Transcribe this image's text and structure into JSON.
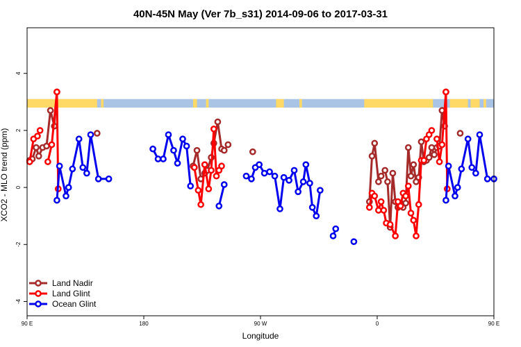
{
  "chart_data": {
    "type": "line",
    "title": "40N-45N May (Ver 7b_s31)   2014-09-06 to 2017-03-31",
    "xlabel": "Longitude",
    "ylabel": "XCO2 - MLO trend (ppm)",
    "xlim": [
      90,
      450
    ],
    "ylim": [
      -4.5,
      5.6
    ],
    "x_ticks": [
      90,
      180,
      270,
      360,
      450
    ],
    "x_tick_labels": [
      "90 E",
      "180",
      "90 W",
      "0",
      "90 E"
    ],
    "y_ticks": [
      -4,
      -2,
      0,
      2,
      4
    ],
    "y_tick_labels": [
      "-4",
      "-2",
      "0",
      "2",
      "4"
    ],
    "grid": false,
    "legend_position": "bottom-left",
    "surface_band": {
      "y_range": [
        2.8,
        3.1
      ],
      "land_color": "#ffd966",
      "ocean_color": "#a9c4e4",
      "land_segments": [
        [
          90,
          144
        ],
        [
          147,
          149
        ],
        [
          218,
          221
        ],
        [
          228,
          230
        ],
        [
          282,
          288
        ],
        [
          300,
          302
        ],
        [
          350,
          403
        ],
        [
          416,
          430
        ],
        [
          432,
          439
        ],
        [
          442,
          444
        ]
      ]
    },
    "series": [
      {
        "name": "Land Nadir",
        "color": "#a52a2a",
        "segments": [
          [
            [
              92,
              0.95
            ],
            [
              94,
              1.0
            ],
            [
              97,
              1.4
            ],
            [
              99,
              1.1
            ],
            [
              102,
              1.4
            ],
            [
              105,
              1.45
            ],
            [
              108,
              2.7
            ],
            [
              111,
              2.15
            ],
            [
              113,
              3.35
            ]
          ],
          [
            [
              144,
              1.9
            ]
          ],
          [
            [
              218,
              0.75
            ],
            [
              221,
              1.3
            ],
            [
              224,
              0.3
            ],
            [
              227,
              0.5
            ],
            [
              229,
              0.6
            ],
            [
              232,
              1.05
            ],
            [
              234,
              1.55
            ],
            [
              237,
              2.3
            ],
            [
              240,
              1.35
            ],
            [
              242,
              1.3
            ],
            [
              245,
              1.5
            ]
          ],
          [
            [
              264,
              1.25
            ]
          ],
          [
            [
              354,
              -0.5
            ],
            [
              356,
              1.1
            ],
            [
              358,
              1.55
            ],
            [
              361,
              0.2
            ],
            [
              363,
              0.4
            ],
            [
              366,
              0.6
            ],
            [
              368,
              0.2
            ],
            [
              370,
              -1.4
            ],
            [
              372,
              0.5
            ],
            [
              374,
              -0.5
            ],
            [
              376,
              -0.7
            ],
            [
              378,
              -0.55
            ],
            [
              380,
              -0.7
            ],
            [
              382,
              -0.55
            ],
            [
              384,
              1.4
            ],
            [
              386,
              0.4
            ],
            [
              388,
              0.8
            ],
            [
              390,
              0.2
            ],
            [
              392,
              0.35
            ],
            [
              394,
              1.6
            ],
            [
              396,
              0.9
            ],
            [
              398,
              0.95
            ],
            [
              400,
              1.05
            ],
            [
              402,
              1.4
            ],
            [
              404,
              1.15
            ],
            [
              406,
              1.4
            ],
            [
              408,
              1.45
            ],
            [
              410,
              2.7
            ],
            [
              412,
              2.15
            ],
            [
              413,
              3.35
            ]
          ],
          [
            [
              424,
              1.9
            ]
          ]
        ]
      },
      {
        "name": "Land Glint",
        "color": "#ff0000",
        "segments": [
          [
            [
              92,
              0.9
            ],
            [
              95,
              1.7
            ],
            [
              98,
              1.8
            ],
            [
              100,
              2.0
            ]
          ],
          [
            [
              106,
              0.9
            ],
            [
              109,
              1.5
            ],
            [
              113,
              3.35
            ],
            [
              114,
              -0.05
            ]
          ],
          [
            [
              219,
              0.7
            ],
            [
              222,
              -0.1
            ],
            [
              224,
              -0.6
            ],
            [
              227,
              0.8
            ],
            [
              230,
              -0.05
            ],
            [
              232,
              0.6
            ],
            [
              234,
              2.05
            ],
            [
              236,
              0.4
            ],
            [
              238,
              0.6
            ],
            [
              240,
              0.75
            ]
          ],
          [
            [
              354,
              -0.7
            ],
            [
              356,
              -0.2
            ],
            [
              358,
              -0.3
            ],
            [
              361,
              -0.8
            ],
            [
              363,
              -0.5
            ],
            [
              365,
              -0.8
            ],
            [
              367,
              -1.25
            ]
          ],
          [
            [
              370,
              -1.3
            ],
            [
              374,
              -1.7
            ],
            [
              376,
              -0.5
            ],
            [
              378,
              -0.65
            ],
            [
              380,
              -0.2
            ],
            [
              382,
              -0.3
            ],
            [
              384,
              0.05
            ],
            [
              386,
              -0.9
            ],
            [
              388,
              -1.15
            ],
            [
              390,
              -1.7
            ],
            [
              392,
              -0.6
            ],
            [
              394,
              0.95
            ],
            [
              396,
              0.95
            ],
            [
              398,
              1.7
            ],
            [
              400,
              1.85
            ],
            [
              402,
              2.0
            ]
          ],
          [
            [
              406,
              1.7
            ],
            [
              408,
              0.9
            ],
            [
              410,
              1.5
            ],
            [
              413,
              3.35
            ],
            [
              414,
              -0.05
            ]
          ]
        ]
      },
      {
        "name": "Ocean Glint",
        "color": "#0000ee",
        "segments": [
          [
            [
              113,
              -0.45
            ],
            [
              115,
              0.75
            ],
            [
              120,
              -0.3
            ],
            [
              122,
              0.0
            ],
            [
              125,
              0.65
            ],
            [
              130,
              1.7
            ],
            [
              133,
              0.7
            ],
            [
              136,
              0.5
            ],
            [
              139,
              1.85
            ],
            [
              145,
              0.3
            ],
            [
              153,
              0.3
            ]
          ],
          [
            [
              187,
              1.35
            ],
            [
              191,
              1.0
            ],
            [
              195,
              1.0
            ],
            [
              199,
              1.85
            ],
            [
              203,
              1.3
            ],
            [
              206,
              0.85
            ],
            [
              210,
              1.7
            ],
            [
              213,
              1.45
            ],
            [
              216,
              0.05
            ]
          ],
          [
            [
              238,
              -0.65
            ],
            [
              242,
              0.1
            ]
          ],
          [
            [
              259,
              0.4
            ],
            [
              263,
              0.3
            ],
            [
              266,
              0.7
            ],
            [
              269,
              0.8
            ],
            [
              273,
              0.5
            ],
            [
              277,
              0.55
            ],
            [
              281,
              0.4
            ],
            [
              285,
              -0.75
            ],
            [
              288,
              0.35
            ],
            [
              292,
              0.25
            ],
            [
              296,
              0.6
            ],
            [
              299,
              -0.15
            ],
            [
              303,
              0.2
            ],
            [
              305,
              0.8
            ],
            [
              308,
              0.15
            ],
            [
              310,
              -0.7
            ],
            [
              313,
              -1.0
            ],
            [
              316,
              -0.1
            ]
          ],
          [
            [
              326,
              -1.7
            ],
            [
              328,
              -1.45
            ]
          ],
          [
            [
              342,
              -1.9
            ]
          ],
          [
            [
              413,
              -0.45
            ],
            [
              415,
              0.75
            ],
            [
              420,
              -0.3
            ],
            [
              422,
              0.0
            ],
            [
              425,
              0.65
            ],
            [
              430,
              1.7
            ],
            [
              433,
              0.7
            ],
            [
              436,
              0.5
            ],
            [
              439,
              1.85
            ],
            [
              445,
              0.3
            ],
            [
              450,
              0.3
            ]
          ]
        ]
      }
    ]
  }
}
